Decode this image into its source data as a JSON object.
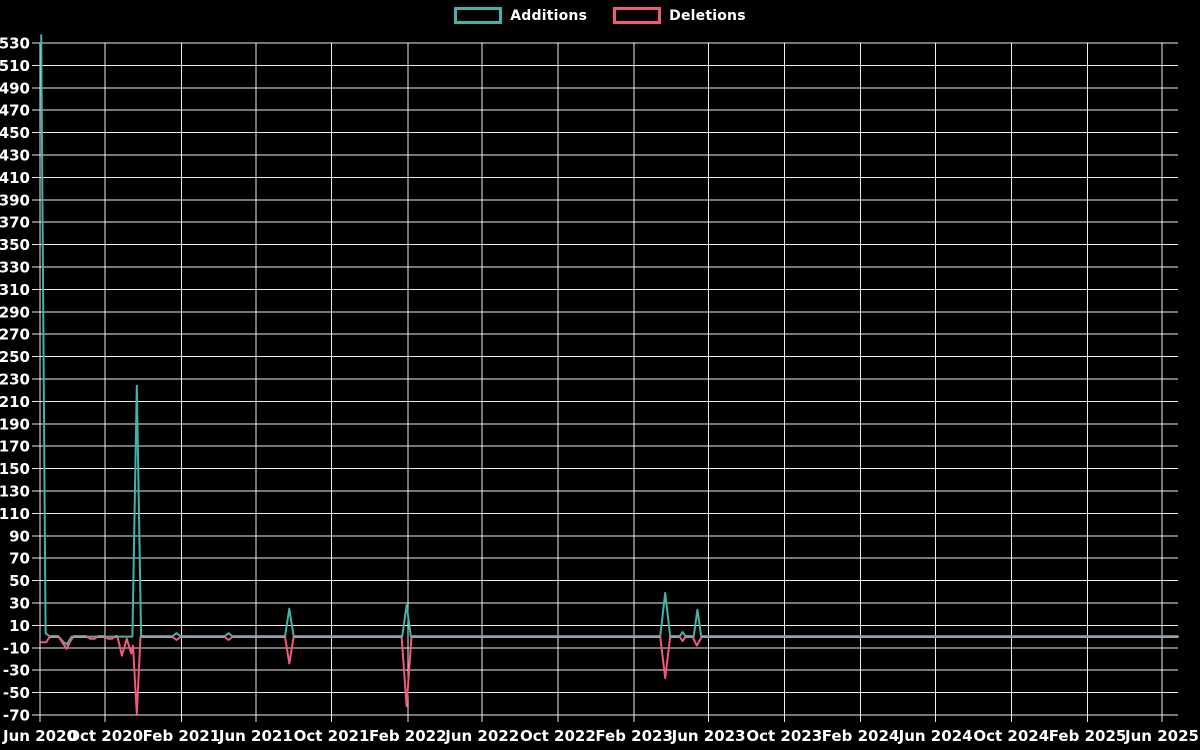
{
  "page": {
    "background": "#000000"
  },
  "legend": {
    "items": [
      {
        "label": "Additions",
        "color": "#42b3a9"
      },
      {
        "label": "Deletions",
        "color": "#f2597a"
      }
    ]
  },
  "chart_data": {
    "type": "line",
    "title": "",
    "xlabel": "",
    "ylabel": "",
    "grid": true,
    "legend_position": "top-center",
    "background_color": "#000000",
    "grid_color": "#ffffff",
    "text_color": "#ffffff",
    "zero_overlap_color": "#8fa4b0",
    "y_axis": {
      "min": -70,
      "max": 530,
      "tick_step": 20,
      "ticks": [
        530,
        510,
        490,
        470,
        450,
        430,
        410,
        390,
        370,
        350,
        330,
        310,
        290,
        270,
        250,
        230,
        210,
        190,
        170,
        150,
        130,
        110,
        90,
        70,
        50,
        30,
        10,
        -10,
        -30,
        -50,
        -70
      ]
    },
    "x_axis": {
      "start_date": "2020-06-18",
      "end_date": "2025-06-27",
      "ticks": [
        {
          "label": "Jun 2020",
          "date": "2020-06-01"
        },
        {
          "label": "Oct 2020",
          "date": "2020-10-01"
        },
        {
          "label": "Feb 2021",
          "date": "2021-02-01"
        },
        {
          "label": "Jun 2021",
          "date": "2021-06-01"
        },
        {
          "label": "Oct 2021",
          "date": "2021-10-01"
        },
        {
          "label": "Feb 2022",
          "date": "2022-02-01"
        },
        {
          "label": "Jun 2022",
          "date": "2022-06-01"
        },
        {
          "label": "Oct 2022",
          "date": "2022-10-01"
        },
        {
          "label": "Feb 2023",
          "date": "2023-02-01"
        },
        {
          "label": "Jun 2023",
          "date": "2023-06-01"
        },
        {
          "label": "Oct 2023",
          "date": "2023-10-01"
        },
        {
          "label": "Feb 2024",
          "date": "2024-02-01"
        },
        {
          "label": "Jun 2024",
          "date": "2024-06-01"
        },
        {
          "label": "Oct 2024",
          "date": "2024-10-01"
        },
        {
          "label": "Feb 2025",
          "date": "2025-02-01"
        },
        {
          "label": "Jun 2025",
          "date": "2025-06-01"
        }
      ]
    },
    "series": [
      {
        "name": "Additions",
        "color": "#42b3a9",
        "points": [
          [
            "2020-06-20",
            537
          ],
          [
            "2020-06-27",
            3
          ],
          [
            "2020-07-04",
            0
          ],
          [
            "2020-07-18",
            0
          ],
          [
            "2020-07-26",
            -5
          ],
          [
            "2020-07-31",
            -7
          ],
          [
            "2020-08-08",
            0
          ],
          [
            "2020-11-14",
            0
          ],
          [
            "2020-11-21",
            224
          ],
          [
            "2020-11-28",
            0
          ],
          [
            "2021-01-17",
            0
          ],
          [
            "2021-01-24",
            3
          ],
          [
            "2021-01-31",
            0
          ],
          [
            "2021-04-11",
            0
          ],
          [
            "2021-04-18",
            3
          ],
          [
            "2021-04-25",
            0
          ],
          [
            "2021-07-18",
            0
          ],
          [
            "2021-07-25",
            25
          ],
          [
            "2021-08-01",
            0
          ],
          [
            "2022-01-23",
            0
          ],
          [
            "2022-01-30",
            28
          ],
          [
            "2022-02-06",
            0
          ],
          [
            "2023-03-15",
            0
          ],
          [
            "2023-03-23",
            39
          ],
          [
            "2023-03-31",
            0
          ],
          [
            "2023-04-15",
            0
          ],
          [
            "2023-04-20",
            4
          ],
          [
            "2023-04-25",
            0
          ],
          [
            "2023-05-08",
            0
          ],
          [
            "2023-05-14",
            24
          ],
          [
            "2023-05-20",
            0
          ],
          [
            "2025-06-27",
            0
          ]
        ]
      },
      {
        "name": "Deletions",
        "color": "#f2597a",
        "points": [
          [
            "2020-06-20",
            -5
          ],
          [
            "2020-06-28",
            -5
          ],
          [
            "2020-07-04",
            0
          ],
          [
            "2020-07-18",
            0
          ],
          [
            "2020-07-26",
            -7
          ],
          [
            "2020-07-31",
            -11
          ],
          [
            "2020-08-06",
            -4
          ],
          [
            "2020-08-11",
            0
          ],
          [
            "2020-09-01",
            0
          ],
          [
            "2020-09-07",
            -2
          ],
          [
            "2020-09-14",
            -2
          ],
          [
            "2020-09-19",
            0
          ],
          [
            "2020-09-30",
            0
          ],
          [
            "2020-10-06",
            -2
          ],
          [
            "2020-10-12",
            -2
          ],
          [
            "2020-10-17",
            0
          ],
          [
            "2020-10-21",
            0
          ],
          [
            "2020-10-28",
            -17
          ],
          [
            "2020-11-05",
            -2
          ],
          [
            "2020-11-12",
            -15
          ],
          [
            "2020-11-15",
            -8
          ],
          [
            "2020-11-21",
            -69
          ],
          [
            "2020-11-27",
            0
          ],
          [
            "2021-01-17",
            0
          ],
          [
            "2021-01-24",
            -3
          ],
          [
            "2021-01-31",
            0
          ],
          [
            "2021-04-11",
            0
          ],
          [
            "2021-04-18",
            -3
          ],
          [
            "2021-04-25",
            0
          ],
          [
            "2021-07-18",
            0
          ],
          [
            "2021-07-25",
            -24
          ],
          [
            "2021-08-01",
            0
          ],
          [
            "2022-01-22",
            0
          ],
          [
            "2022-01-30",
            -62
          ],
          [
            "2022-02-07",
            0
          ],
          [
            "2023-03-15",
            0
          ],
          [
            "2023-03-23",
            -37
          ],
          [
            "2023-03-31",
            0
          ],
          [
            "2023-04-15",
            0
          ],
          [
            "2023-04-20",
            -4
          ],
          [
            "2023-04-25",
            0
          ],
          [
            "2023-05-06",
            0
          ],
          [
            "2023-05-13",
            -8
          ],
          [
            "2023-05-21",
            0
          ],
          [
            "2025-06-27",
            0
          ]
        ]
      }
    ]
  }
}
